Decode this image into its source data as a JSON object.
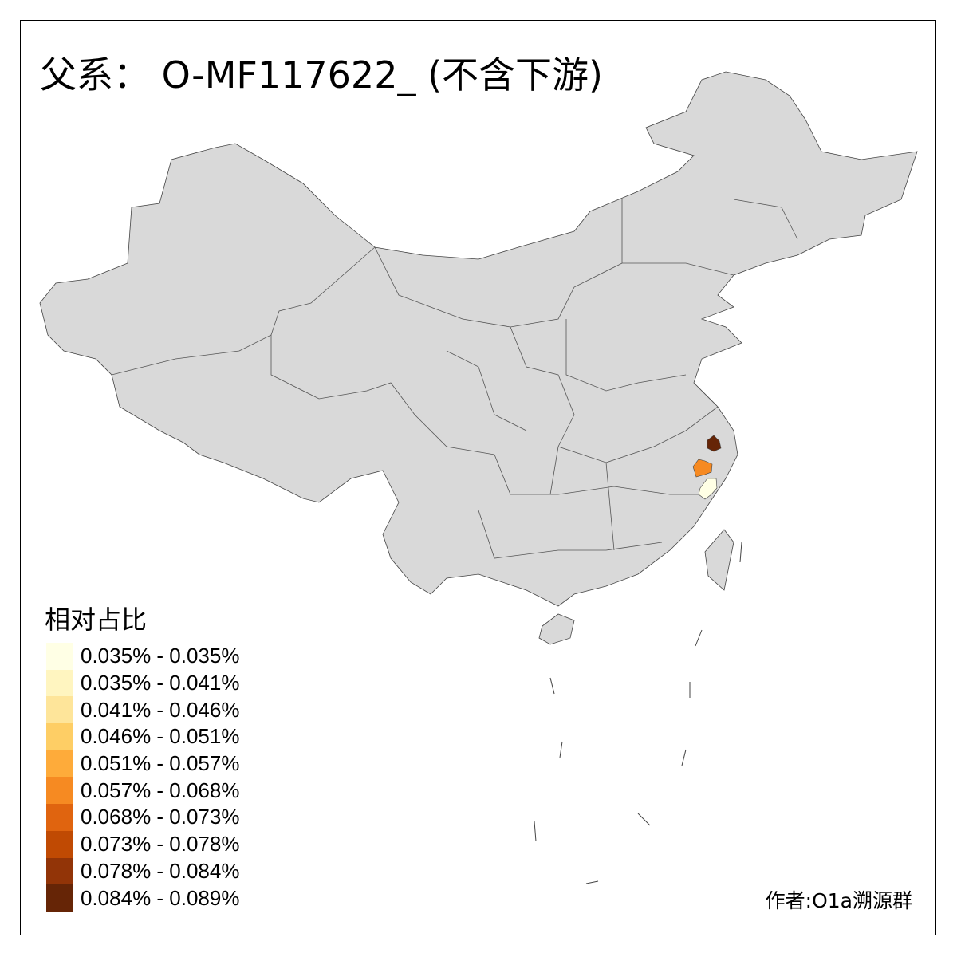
{
  "title": "父系： O-MF117622_ (不含下游)",
  "legend": {
    "title": "相对占比",
    "items": [
      {
        "label": "0.035% - 0.035%",
        "color": "#FFFFE5"
      },
      {
        "label": "0.035% - 0.041%",
        "color": "#FFF5C0"
      },
      {
        "label": "0.041% - 0.046%",
        "color": "#FEE59A"
      },
      {
        "label": "0.046% - 0.051%",
        "color": "#FECE65"
      },
      {
        "label": "0.051% - 0.057%",
        "color": "#FEAB3A"
      },
      {
        "label": "0.057% - 0.068%",
        "color": "#F68A22"
      },
      {
        "label": "0.068% - 0.073%",
        "color": "#E0640F"
      },
      {
        "label": "0.073% - 0.078%",
        "color": "#C04A03"
      },
      {
        "label": "0.078% - 0.084%",
        "color": "#923407"
      },
      {
        "label": "0.084% - 0.089%",
        "color": "#662506"
      }
    ]
  },
  "map": {
    "base_color": "#D9D9D9",
    "highlighted_regions": [
      {
        "color": "#662506",
        "bin": "0.084% - 0.089%"
      },
      {
        "color": "#F68A22",
        "bin": "0.057% - 0.068%"
      },
      {
        "color": "#FFFFE5",
        "bin": "0.035% - 0.035%"
      }
    ]
  },
  "credit": "作者:O1a溯源群"
}
